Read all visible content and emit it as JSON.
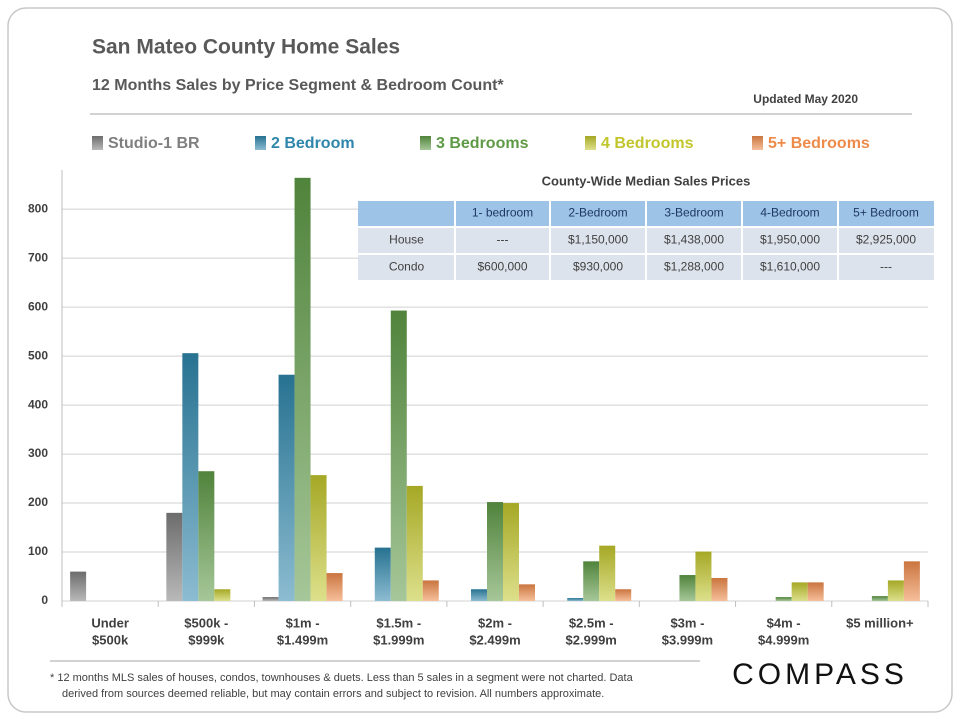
{
  "chart_data": {
    "type": "bar",
    "title": "San Mateo County Home Sales",
    "subtitle": "12 Months  Sales by Price Segment & Bedroom Count*",
    "updated": "Updated May 2020",
    "categories": [
      [
        "Under",
        "$500k"
      ],
      [
        "$500k -",
        "$999k"
      ],
      [
        "$1m -",
        "$1.499m"
      ],
      [
        "$1.5m -",
        "$1.999m"
      ],
      [
        "$2m -",
        "$2.499m"
      ],
      [
        "$2.5m -",
        "$2.999m"
      ],
      [
        "$3m -",
        "$3.999m"
      ],
      [
        "$4m -",
        "$4.999m"
      ],
      [
        "$5 million+"
      ]
    ],
    "series": [
      {
        "name": "Studio-1 BR",
        "color": "#7f7f7f",
        "values": [
          60,
          180,
          8,
          null,
          null,
          null,
          null,
          null,
          null
        ]
      },
      {
        "name": "2 Bedroom",
        "color": "#2e86ab",
        "values": [
          null,
          506,
          462,
          109,
          24,
          6,
          null,
          null,
          null
        ]
      },
      {
        "name": "3 Bedrooms",
        "color": "#5e9a45",
        "values": [
          null,
          265,
          864,
          593,
          202,
          81,
          53,
          8,
          10
        ]
      },
      {
        "name": "4 Bedrooms",
        "color": "#c2c62c",
        "values": [
          null,
          24,
          257,
          235,
          200,
          113,
          101,
          38,
          42
        ]
      },
      {
        "name": "5+ Bedrooms",
        "color": "#ee8a4a",
        "values": [
          null,
          null,
          57,
          42,
          34,
          24,
          47,
          38,
          81
        ]
      }
    ],
    "ylim": [
      0,
      880
    ],
    "yticks": [
      0,
      100,
      200,
      300,
      400,
      500,
      600,
      700,
      800
    ],
    "grid": true,
    "table": {
      "title": "County-Wide  Median Sales Prices",
      "columns": [
        "1- bedroom",
        "2-Bedroom",
        "3-Bedroom",
        "4-Bedroom",
        "5+ Bedroom"
      ],
      "rows": [
        {
          "label": "House",
          "cells": [
            "---",
            "$1,150,000",
            "$1,438,000",
            "$1,950,000",
            "$2,925,000"
          ]
        },
        {
          "label": "Condo",
          "cells": [
            "$600,000",
            "$930,000",
            "$1,288,000",
            "$1,610,000",
            "---"
          ]
        }
      ]
    },
    "footnote": [
      "* 12 months MLS sales of houses, condos, townhouses & duets. Less than 5 sales in a segment were not charted. Data",
      "derived from sources deemed reliable, but may contain errors and subject to revision. All numbers approximate."
    ],
    "logo": "COMPASS"
  }
}
